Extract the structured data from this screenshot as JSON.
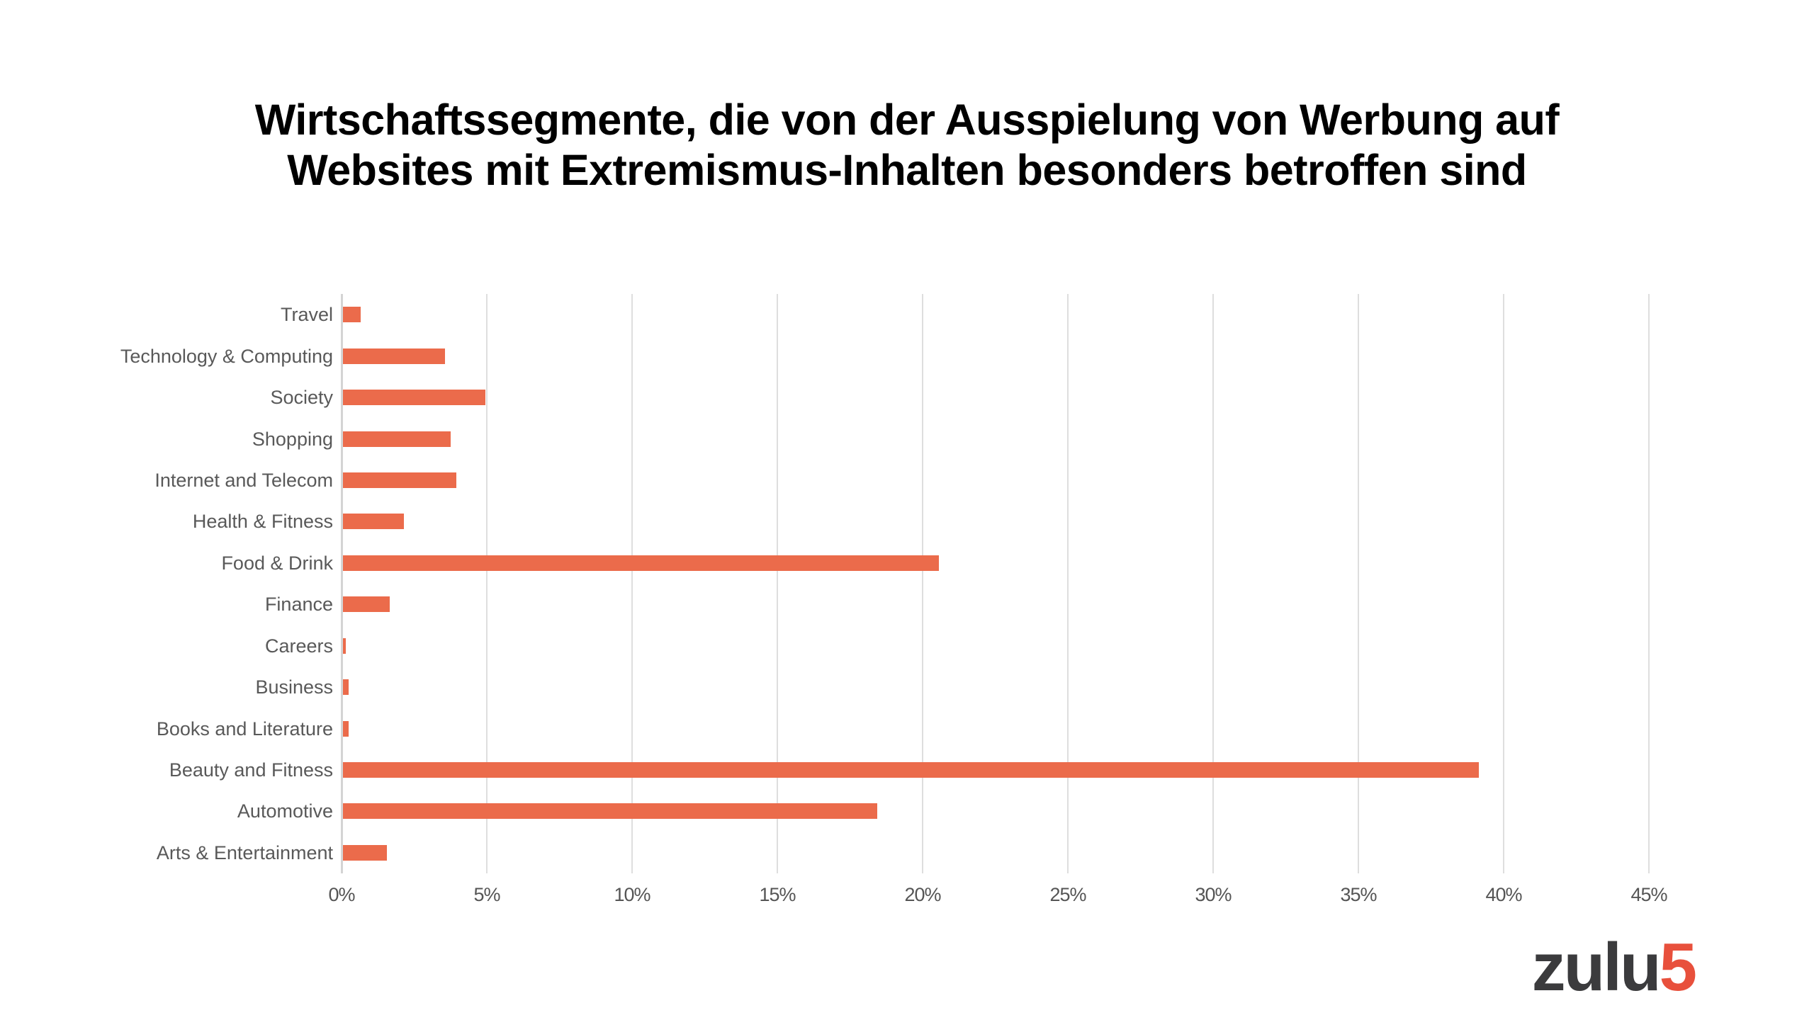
{
  "title": {
    "line1": "Wirtschaftssegmente, die von der Ausspielung von Werbung auf",
    "line2": "Websites mit Extremismus-Inhalten besonders betroffen sind"
  },
  "chart_data": {
    "type": "bar",
    "orientation": "horizontal",
    "title": "Wirtschaftssegmente, die von der Ausspielung von Werbung auf Websites mit Extremismus-Inhalten besonders betroffen sind",
    "categories": [
      "Travel",
      "Technology & Computing",
      "Society",
      "Shopping",
      "Internet and Telecom",
      "Health & Fitness",
      "Food & Drink",
      "Finance",
      "Careers",
      "Business",
      "Books and Literature",
      "Beauty and Fitness",
      "Automotive",
      "Arts & Entertainment"
    ],
    "values": [
      0.6,
      3.5,
      4.9,
      3.7,
      3.9,
      2.1,
      20.5,
      1.6,
      0.1,
      0.2,
      0.2,
      39.1,
      18.4,
      1.5
    ],
    "unit": "%",
    "xlabel": "",
    "ylabel": "",
    "xlim": [
      0,
      45
    ],
    "xtick_step": 5,
    "xticks": [
      "0%",
      "5%",
      "10%",
      "15%",
      "20%",
      "25%",
      "30%",
      "35%",
      "40%",
      "45%"
    ],
    "grid": true,
    "legend": false,
    "bar_color": "#EB6B4B"
  },
  "colors": {
    "bar": "#EB6B4B",
    "category_label": "#595959",
    "tick_label": "#555555",
    "gridline": "#DEDEDE",
    "axis_line": "#D4D4D4",
    "title": "#000000",
    "background": "#FFFFFF"
  },
  "logo": {
    "text": "zulu",
    "accent": "5",
    "text_color": "#3B3B3D",
    "accent_color": "#E8503C"
  }
}
